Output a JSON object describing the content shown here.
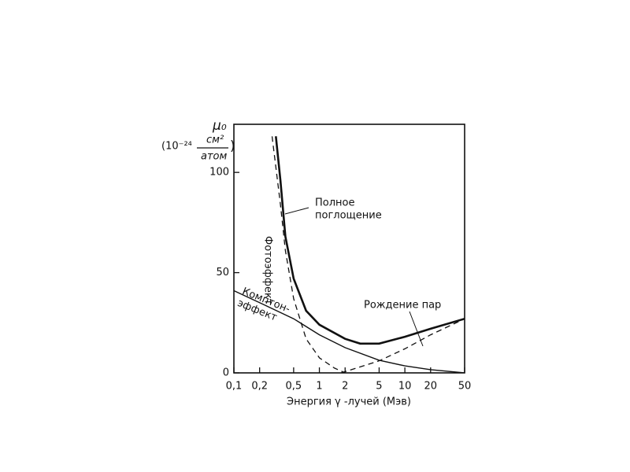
{
  "chart_data": {
    "type": "line",
    "xlabel": "Энергия γ -лучей (Мэв)",
    "ylabel": "μ₀",
    "yunit": [
      "(10⁻²⁴",
      "см²",
      "атом",
      ")"
    ],
    "xlog": true,
    "xlim": [
      0.1,
      50
    ],
    "ylim": [
      0,
      124
    ],
    "xticks": [
      {
        "value": 0.1,
        "label": "0,1"
      },
      {
        "value": 0.2,
        "label": "0,2"
      },
      {
        "value": 0.5,
        "label": "0,5"
      },
      1,
      2,
      5,
      10,
      20,
      50
    ],
    "yticks": [
      0,
      50,
      100
    ],
    "series": [
      {
        "label": [
          "Полное",
          "поглощение"
        ],
        "color": "#111",
        "dash": false,
        "width": 2.6,
        "x": [
          0.31,
          0.35,
          0.4,
          0.5,
          0.7,
          1,
          2,
          3,
          5,
          10,
          20,
          50
        ],
        "values": [
          118,
          96,
          68,
          47,
          31,
          24,
          17,
          14.6,
          14.6,
          18,
          22,
          27
        ]
      },
      {
        "label": [
          "Фотоэффект"
        ],
        "color": "#111",
        "dash": true,
        "width": 1.3,
        "x": [
          0.28,
          0.35,
          0.4,
          0.5,
          0.7,
          1,
          1.5,
          2
        ],
        "values": [
          118,
          84,
          61,
          37,
          17,
          7.5,
          2.4,
          0
        ]
      },
      {
        "label": [
          "Комптон-",
          "эффект"
        ],
        "color": "#111",
        "dash": false,
        "width": 1.4,
        "x": [
          0.1,
          0.2,
          0.5,
          1,
          2,
          5,
          10,
          20,
          50
        ],
        "values": [
          41,
          35,
          27,
          19,
          12.6,
          6.3,
          3.5,
          1.6,
          0
        ]
      },
      {
        "label": [
          "Рождение пар"
        ],
        "color": "#111",
        "dash": true,
        "width": 1.3,
        "x": [
          1.8,
          5,
          10,
          20,
          50
        ],
        "values": [
          0,
          6,
          12,
          19,
          27
        ]
      }
    ]
  }
}
